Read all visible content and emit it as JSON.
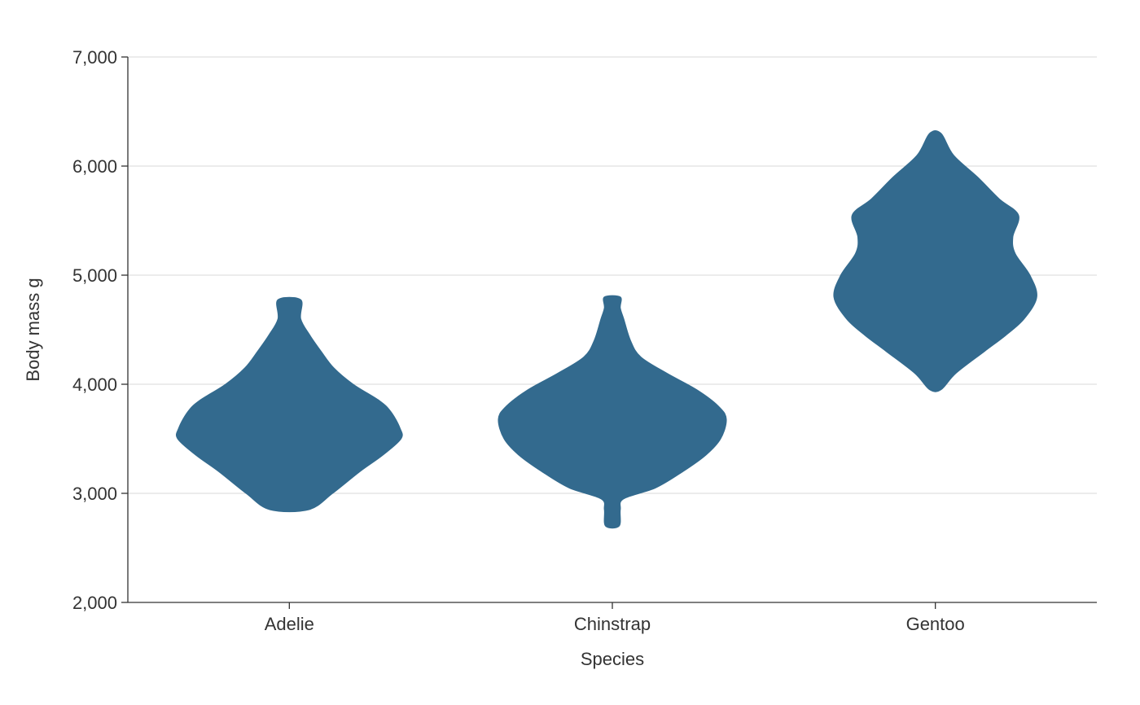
{
  "chart_data": {
    "type": "violin",
    "xlabel": "Species",
    "ylabel": "Body mass g",
    "ylim": [
      2000,
      7000
    ],
    "yticks": [
      2000,
      3000,
      4000,
      5000,
      6000,
      7000
    ],
    "ytick_labels": [
      "2,000",
      "3,000",
      "4,000",
      "5,000",
      "6,000",
      "7,000"
    ],
    "categories": [
      "Adelie",
      "Chinstrap",
      "Gentoo"
    ],
    "grid": "horizontal",
    "fill_color": "#336a8e",
    "series": [
      {
        "category": "Adelie",
        "min": 2850,
        "max": 4775,
        "profile": [
          [
            2850,
            0.17
          ],
          [
            3000,
            0.38
          ],
          [
            3200,
            0.62
          ],
          [
            3350,
            0.82
          ],
          [
            3500,
            0.98
          ],
          [
            3600,
            0.97
          ],
          [
            3750,
            0.89
          ],
          [
            3850,
            0.79
          ],
          [
            4000,
            0.56
          ],
          [
            4150,
            0.39
          ],
          [
            4300,
            0.28
          ],
          [
            4450,
            0.18
          ],
          [
            4600,
            0.1
          ],
          [
            4775,
            0.1
          ]
        ]
      },
      {
        "category": "Chinstrap",
        "min": 2700,
        "max": 4800,
        "profile": [
          [
            2700,
            0.06
          ],
          [
            2850,
            0.07
          ],
          [
            2950,
            0.1
          ],
          [
            3050,
            0.38
          ],
          [
            3200,
            0.62
          ],
          [
            3350,
            0.82
          ],
          [
            3500,
            0.95
          ],
          [
            3680,
            1.0
          ],
          [
            3800,
            0.93
          ],
          [
            3950,
            0.74
          ],
          [
            4100,
            0.48
          ],
          [
            4250,
            0.25
          ],
          [
            4400,
            0.16
          ],
          [
            4600,
            0.1
          ],
          [
            4700,
            0.07
          ],
          [
            4800,
            0.07
          ]
        ]
      },
      {
        "category": "Gentoo",
        "min": 3950,
        "max": 6300,
        "profile": [
          [
            3950,
            0.05
          ],
          [
            4100,
            0.18
          ],
          [
            4300,
            0.43
          ],
          [
            4450,
            0.62
          ],
          [
            4600,
            0.78
          ],
          [
            4800,
            0.89
          ],
          [
            5000,
            0.83
          ],
          [
            5200,
            0.7
          ],
          [
            5350,
            0.68
          ],
          [
            5550,
            0.73
          ],
          [
            5700,
            0.56
          ],
          [
            5900,
            0.37
          ],
          [
            6100,
            0.16
          ],
          [
            6300,
            0.05
          ]
        ]
      }
    ]
  }
}
